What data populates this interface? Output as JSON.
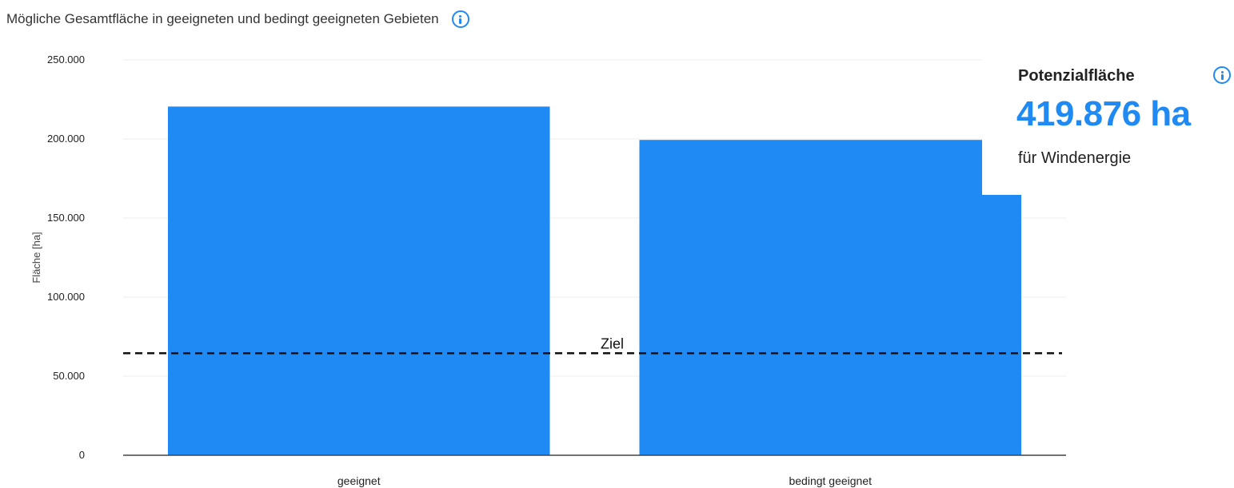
{
  "header": {
    "title": "Mögliche Gesamtfläche in geeigneten und bedingt geeigneten Gebieten",
    "info_icon": "info-icon"
  },
  "chart_data": {
    "type": "bar",
    "categories": [
      "geeignet",
      "bedingt geeignet"
    ],
    "values": [
      220500,
      199400
    ],
    "ylabel": "Fläche [ha]",
    "ylim": [
      0,
      250000
    ],
    "yticks": [
      0,
      50000,
      100000,
      150000,
      200000,
      250000
    ],
    "ytick_labels": [
      "0",
      "50.000",
      "100.000",
      "150.000",
      "200.000",
      "250.000"
    ],
    "target": {
      "label": "Ziel",
      "value": 64500
    },
    "bar_color": "#1f8af3",
    "grid": true
  },
  "summary": {
    "title": "Potenzialfläche",
    "value": "419.876 ha",
    "subtitle": "für Windenergie",
    "value_color": "#1f8af3"
  }
}
